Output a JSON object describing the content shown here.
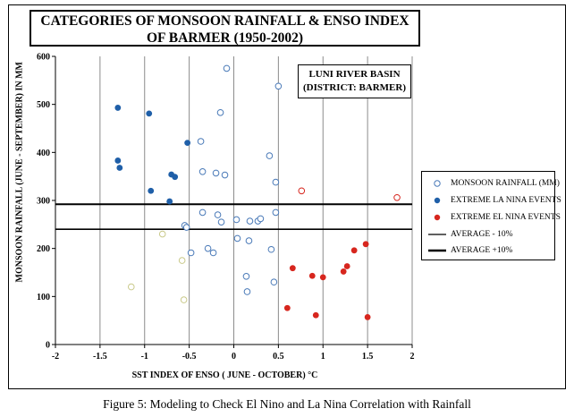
{
  "chart_data": {
    "type": "scatter",
    "title": "CATEGORIES OF MONSOON RAINFALL & ENSO INDEX OF BARMER (1950-2002)",
    "xlabel": "SST INDEX OF ENSO ( JUNE - OCTOBER) °C",
    "ylabel": "MONSOON RAINFALL (JUNE - SEPTEMBER) IN MM",
    "xlim": [
      -2,
      2
    ],
    "ylim": [
      0,
      600
    ],
    "x_ticks": [
      "-2",
      "-1.5",
      "-1",
      "-0.5",
      "0",
      "0.5",
      "1",
      "1.5",
      "2"
    ],
    "y_ticks": [
      "0",
      "100",
      "200",
      "300",
      "400",
      "500",
      "600"
    ],
    "grid": "vertical",
    "annotation": "LUNI RIVER BASIN (DISTRICT: BARMER)",
    "legend_position": "right",
    "series": [
      {
        "name": "MONSOON RAINFALL (MM)",
        "marker": "open-circle",
        "color": "#4a7ab8",
        "points": [
          [
            -0.08,
            575
          ],
          [
            0.5,
            538
          ],
          [
            -0.15,
            483
          ],
          [
            -0.37,
            423
          ],
          [
            0.4,
            393
          ],
          [
            -0.35,
            360
          ],
          [
            -0.2,
            357
          ],
          [
            -0.1,
            353
          ],
          [
            0.47,
            338
          ],
          [
            -0.35,
            275
          ],
          [
            -0.18,
            270
          ],
          [
            0.03,
            260
          ],
          [
            0.18,
            257
          ],
          [
            0.27,
            257
          ],
          [
            0.3,
            262
          ],
          [
            0.47,
            275
          ],
          [
            -0.55,
            248
          ],
          [
            -0.53,
            244
          ],
          [
            -0.14,
            255
          ],
          [
            0.04,
            221
          ],
          [
            0.17,
            216
          ],
          [
            -0.29,
            200
          ],
          [
            -0.23,
            191
          ],
          [
            -0.48,
            191
          ],
          [
            0.42,
            198
          ],
          [
            0.14,
            142
          ],
          [
            0.45,
            130
          ],
          [
            0.15,
            110
          ]
        ]
      },
      {
        "name": "EXTREME LA NINA EVENTS",
        "marker": "filled-circle",
        "color": "#1f5fa8",
        "points": [
          [
            -1.3,
            493
          ],
          [
            -0.95,
            481
          ],
          [
            -0.52,
            420
          ],
          [
            -1.3,
            383
          ],
          [
            -1.28,
            368
          ],
          [
            -0.7,
            354
          ],
          [
            -0.66,
            349
          ],
          [
            -0.93,
            320
          ],
          [
            -0.72,
            298
          ]
        ]
      },
      {
        "name": "EXTREME EL NINA EVENTS",
        "marker": "filled-circle",
        "color": "#d7261e",
        "points": [
          [
            1.48,
            209
          ],
          [
            1.35,
            196
          ],
          [
            0.66,
            159
          ],
          [
            1.27,
            163
          ],
          [
            1.23,
            152
          ],
          [
            0.88,
            143
          ],
          [
            1.0,
            140
          ],
          [
            0.6,
            76
          ],
          [
            0.92,
            61
          ],
          [
            1.5,
            57
          ]
        ]
      },
      {
        "name": "AVERAGE - 10%",
        "marker": "line",
        "color": "#000000",
        "y": 240
      },
      {
        "name": "AVERAGE +10%",
        "marker": "thick-line",
        "color": "#000000",
        "y": 292
      }
    ],
    "unlabeled_points": [
      {
        "color": "#c9c98a",
        "points": [
          [
            -0.8,
            230
          ],
          [
            -0.58,
            175
          ],
          [
            -0.56,
            93
          ],
          [
            -1.15,
            120
          ]
        ]
      },
      {
        "color": "#d7261e",
        "points": [
          [
            0.76,
            320
          ],
          [
            1.83,
            306
          ]
        ]
      }
    ]
  },
  "caption": "Figure 5: Modeling to Check El Nino and La Nina Correlation with Rainfall"
}
